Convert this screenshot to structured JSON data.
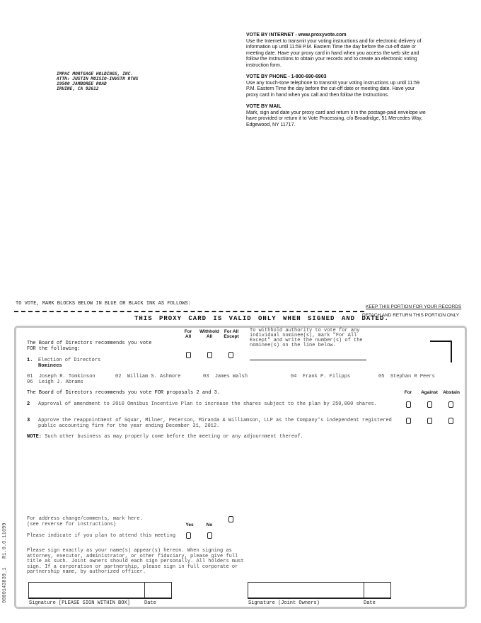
{
  "mailing_address": [
    "IMPAC MORTGAGE HOLDINGS, INC.",
    "ATTN: JUSTIN MOISIO-INVSTR RTNS",
    "19500 JAMBOREE ROAD",
    "IRVINE, CA  92612"
  ],
  "voting_methods": [
    {
      "title": "VOTE BY INTERNET - www.proxyvote.com",
      "lines": [
        "Use the Internet to transmit your voting instructions and for electronic delivery of",
        "information up until 11:59 P.M. Eastern Time the day before the cut-off date or",
        "meeting date. Have your proxy card in hand when you access the web site and",
        "follow the instructions to obtain your records and to create an electronic voting",
        "instruction form."
      ]
    },
    {
      "title": "VOTE BY PHONE - 1-800-690-6903",
      "lines": [
        "Use any touch-tone telephone to transmit your voting instructions up until 11:59",
        "P.M. Eastern Time the day before the cut-off date or meeting date. Have your",
        "proxy card in hand when you call and then follow the instructions."
      ]
    },
    {
      "title": "VOTE BY MAIL",
      "lines": [
        "Mark, sign and date your proxy card and return it in the postage-paid envelope we",
        "have provided or return it to Vote Processing, c/o Broadridge, 51 Mercedes Way,",
        "Edgewood, NY 11717."
      ]
    }
  ],
  "instruction": "TO VOTE, MARK BLOCKS BELOW IN BLUE OR BLACK INK AS FOLLOWS:",
  "keep_portion": "KEEP THIS PORTION FOR YOUR RECORDS",
  "detach_portion": "DETACH AND RETURN THIS PORTION ONLY",
  "validity_banner": "THIS PROXY CARD IS VALID ONLY WHEN SIGNED AND DATED.",
  "side_code": "0000143839_1   R1.0.0.11699",
  "directors": {
    "recommendation": [
      "The Board of Directors recommends you vote",
      "FOR the following:"
    ],
    "columns": [
      [
        "For",
        "All"
      ],
      [
        "Withhold",
        "All"
      ],
      [
        "For All",
        "Except"
      ]
    ],
    "withhold_note": [
      "To withhold authority to vote for any",
      "individual nominee(s), mark \"For All",
      "Except\" and write the number(s) of the",
      "nominee(s) on the line below."
    ],
    "item_number": "1.",
    "item_label": "Election of Directors",
    "nominees_label": "Nominees",
    "nominees": [
      {
        "num": "01",
        "name": "Joseph R. Tomkinson"
      },
      {
        "num": "02",
        "name": "William S. Ashmore"
      },
      {
        "num": "03",
        "name": "James Walsh"
      },
      {
        "num": "04",
        "name": "Frank P. Filipps"
      },
      {
        "num": "05",
        "name": "Stephan R Peers"
      },
      {
        "num": "06",
        "name": "Leigh J. Abrams"
      }
    ]
  },
  "proposals": {
    "recommendation": "The Board of Directors recommends you vote FOR proposals 2 and 3.",
    "columns": [
      "For",
      "Against",
      "Abstain"
    ],
    "items": [
      {
        "num": "2",
        "lines": [
          "Approval of amendment to 2010 Omnibus Incentive Plan to increase the shares subject to the plan by 250,000 shares."
        ]
      },
      {
        "num": "3",
        "lines": [
          "Approve the reappointment of Squar, Milner, Peterson, Miranda & Williamson, LLP as the Company's independent registered",
          "public accounting firm for the year ending December 31, 2012."
        ]
      }
    ],
    "note_label": "NOTE:",
    "note_text": " Such other business as may properly come before the meeting or any adjournment thereof."
  },
  "address_change": [
    "For address change/comments, mark here.",
    "(see reverse for instructions)"
  ],
  "attend": {
    "label": "Please indicate if you plan to attend this meeting",
    "yes": "Yes",
    "no": "No"
  },
  "sign_instructions": [
    "Please sign exactly as your name(s) appear(s) hereon. When signing as",
    "attorney, executor, administrator, or other fiduciary, please give full",
    "title as such. Joint owners should each sign personally. All holders must",
    "sign. If a corporation or partnership, please sign in full corporate or",
    "partnership name, by authorized officer."
  ],
  "signatures": [
    {
      "label": "Signature [PLEASE SIGN WITHIN BOX]",
      "date": "Date"
    },
    {
      "label": "Signature (Joint Owners)",
      "date": "Date"
    }
  ]
}
